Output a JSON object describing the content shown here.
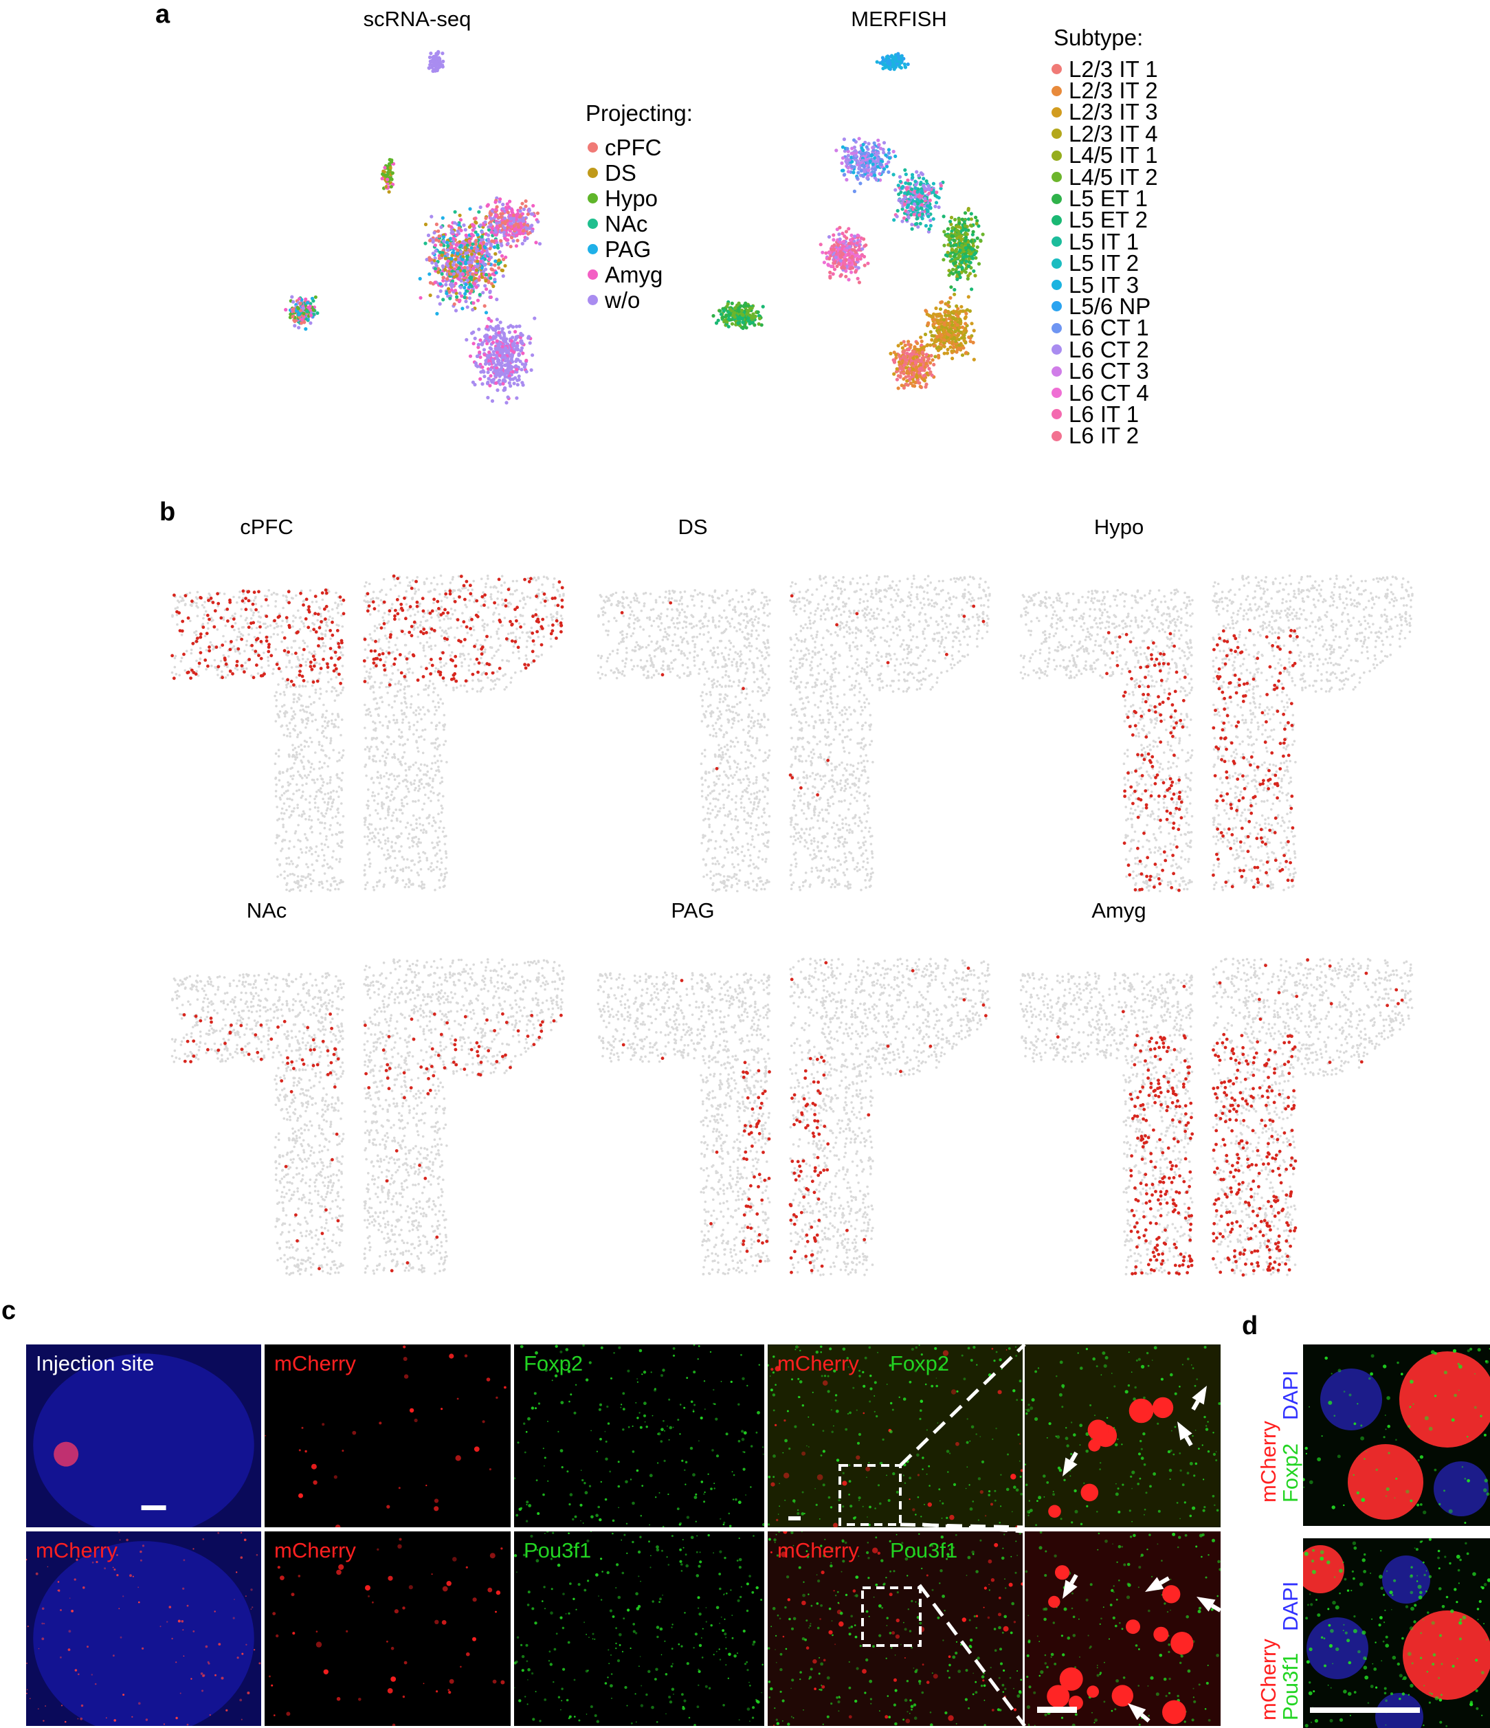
{
  "panel_labels": {
    "a": "a",
    "b": "b",
    "c": "c",
    "d": "d"
  },
  "panel_a": {
    "scrna_title": "scRNA-seq",
    "merfish_title": "MERFISH",
    "projecting_legend": {
      "title": "Projecting:",
      "items": [
        {
          "label": "cPFC",
          "color": "#f07a76"
        },
        {
          "label": "DS",
          "color": "#c09a1a"
        },
        {
          "label": "Hypo",
          "color": "#5fb52a"
        },
        {
          "label": "NAc",
          "color": "#1fbf8e"
        },
        {
          "label": "PAG",
          "color": "#1fb0e8"
        },
        {
          "label": "Amyg",
          "color": "#f35fc4"
        },
        {
          "label": "w/o",
          "color": "#a98cf0"
        }
      ]
    },
    "subtype_legend": {
      "title": "Subtype:",
      "items": [
        {
          "label": "L2/3 IT 1",
          "color": "#f07a76"
        },
        {
          "label": "L2/3 IT 2",
          "color": "#e88a3b"
        },
        {
          "label": "L2/3 IT 3",
          "color": "#d29c1f"
        },
        {
          "label": "L2/3 IT 4",
          "color": "#b4a71c"
        },
        {
          "label": "L4/5 IT 1",
          "color": "#95ad1c"
        },
        {
          "label": "L4/5 IT 2",
          "color": "#6cb52c"
        },
        {
          "label": "L5 ET 1",
          "color": "#2fb24a"
        },
        {
          "label": "L5 ET 2",
          "color": "#1ab873"
        },
        {
          "label": "L5 IT 1",
          "color": "#1cbc9b"
        },
        {
          "label": "L5 IT 2",
          "color": "#1cbcc0"
        },
        {
          "label": "L5 IT 3",
          "color": "#1bb3e0"
        },
        {
          "label": "L5/6 NP",
          "color": "#2aa3f0"
        },
        {
          "label": "L6 CT 1",
          "color": "#6e95f2"
        },
        {
          "label": "L6 CT 2",
          "color": "#a98cf0"
        },
        {
          "label": "L6 CT 3",
          "color": "#d07de8"
        },
        {
          "label": "L6 CT 4",
          "color": "#ef6fd4"
        },
        {
          "label": "L6 IT 1",
          "color": "#f46ab0"
        },
        {
          "label": "L6 IT 2",
          "color": "#f27190"
        }
      ]
    }
  },
  "panel_b": {
    "background_color": "#d9d9d9",
    "highlight_color": "#d7261e",
    "maps": [
      {
        "title": "cPFC",
        "distribution": "upper"
      },
      {
        "title": "DS",
        "distribution": "sparse"
      },
      {
        "title": "Hypo",
        "distribution": "mid-stem"
      },
      {
        "title": "NAc",
        "distribution": "mid"
      },
      {
        "title": "PAG",
        "distribution": "stem-medial"
      },
      {
        "title": "Amyg",
        "distribution": "stem-dense"
      }
    ]
  },
  "panel_c": {
    "row1": [
      {
        "label": "Injection site",
        "label_color": "#ffffff"
      },
      {
        "label": "mCherry",
        "label_color": "#ff2020"
      },
      {
        "label": "Foxp2",
        "label_color": "#22d422"
      },
      {
        "label": "mCherry",
        "label2": "Foxp2",
        "label_color": "#ff2020",
        "label2_color": "#22d422"
      },
      {
        "label": "",
        "label_color": "#ffffff"
      }
    ],
    "row2": [
      {
        "label": "mCherry",
        "label_color": "#ff2020"
      },
      {
        "label": "mCherry",
        "label_color": "#ff2020"
      },
      {
        "label": "Pou3f1",
        "label_color": "#22d422"
      },
      {
        "label": "mCherry",
        "label2": "Pou3f1",
        "label_color": "#ff2020",
        "label2_color": "#22d422"
      },
      {
        "label": "",
        "label_color": "#ffffff"
      }
    ]
  },
  "panel_d": {
    "row1_labels": [
      {
        "text": "mCherry",
        "color": "#ff2020"
      },
      {
        "text": "Foxp2",
        "color": "#22d422"
      },
      {
        "text": "DAPI",
        "color": "#3030ff"
      }
    ],
    "row2_labels": [
      {
        "text": "mCherry",
        "color": "#ff2020"
      },
      {
        "text": "Pou3f1",
        "color": "#22d422"
      },
      {
        "text": "DAPI",
        "color": "#3030ff"
      }
    ]
  }
}
